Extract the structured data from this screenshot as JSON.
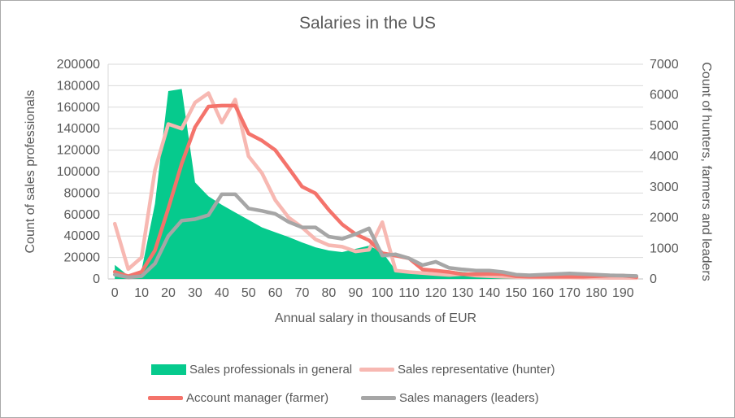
{
  "chart": {
    "title": "Salaries in the US",
    "left_axis_title": "Count of sales professionals",
    "right_axis_title": "Count of hunters, farmers and leaders",
    "x_axis_title": "Annual salary in thousands of EUR",
    "legend": [
      {
        "key": "professionals",
        "label": "Sales professionals in general",
        "swatch": "area"
      },
      {
        "key": "hunter",
        "label": "Sales representative (hunter)",
        "swatch": "line"
      },
      {
        "key": "farmer",
        "label": "Account manager (farmer)",
        "swatch": "line"
      },
      {
        "key": "leaders",
        "label": "Sales managers (leaders)",
        "swatch": "line"
      }
    ],
    "colors": {
      "professionals": "#06ca8d",
      "hunter": "#f7b8b2",
      "farmer": "#f4736b",
      "leaders": "#a6a6a6",
      "text": "#595959",
      "gridline": "#d9d9d9",
      "axis_line": "#bfbfbf"
    }
  },
  "chart_data": {
    "type": "area+line",
    "title": "Salaries in the US",
    "xlabel": "Annual salary in thousands of EUR",
    "ylabel_left": "Count of sales professionals",
    "ylabel_right": "Count of hunters, farmers and leaders",
    "x": [
      0,
      5,
      10,
      15,
      20,
      25,
      30,
      35,
      40,
      45,
      50,
      55,
      60,
      65,
      70,
      75,
      80,
      85,
      90,
      95,
      100,
      105,
      110,
      115,
      120,
      125,
      130,
      135,
      140,
      145,
      150,
      155,
      160,
      165,
      170,
      175,
      180,
      185,
      190,
      195
    ],
    "x_tick_labels": [
      0,
      10,
      20,
      30,
      40,
      50,
      60,
      70,
      80,
      90,
      100,
      110,
      120,
      130,
      140,
      150,
      160,
      170,
      180,
      190
    ],
    "axes": {
      "left_min": 0,
      "left_max": 200000,
      "left_step": 20000,
      "right_min": 0,
      "right_max": 7000,
      "right_step": 1000,
      "gridlines": "horizontal"
    },
    "series": [
      {
        "key": "professionals",
        "name": "Sales professionals in general",
        "axis": "left",
        "style": "area",
        "values": [
          13000,
          3000,
          8000,
          70000,
          175000,
          177000,
          90000,
          77000,
          69000,
          62000,
          55000,
          48000,
          43500,
          39000,
          34000,
          29500,
          26500,
          25000,
          28000,
          31000,
          25000,
          8000,
          7600,
          7000,
          8800,
          7700,
          6500,
          5500,
          4600,
          4000,
          3500,
          3100,
          2800,
          2500,
          2300,
          2100,
          2000,
          1900,
          1800,
          1700
        ]
      },
      {
        "key": "hunter",
        "name": "Sales representative (hunter)",
        "axis": "right",
        "style": "line",
        "values": [
          1800,
          320,
          700,
          3550,
          5050,
          4900,
          5750,
          6060,
          5100,
          5850,
          4000,
          3450,
          2570,
          2000,
          1680,
          1290,
          1100,
          1050,
          900,
          950,
          1850,
          270,
          225,
          190,
          160,
          130,
          160,
          110,
          90,
          70,
          60,
          55,
          50,
          45,
          45,
          40,
          40,
          35,
          35,
          30
        ]
      },
      {
        "key": "farmer",
        "name": "Account manager (farmer)",
        "axis": "right",
        "style": "line",
        "values": [
          230,
          90,
          230,
          930,
          2300,
          3760,
          4950,
          5620,
          5650,
          5650,
          4740,
          4510,
          4200,
          3610,
          3010,
          2790,
          2250,
          1780,
          1460,
          1260,
          840,
          760,
          670,
          310,
          270,
          225,
          155,
          155,
          170,
          160,
          90,
          75,
          75,
          75,
          75,
          75,
          90,
          110,
          110,
          60
        ]
      },
      {
        "key": "leaders",
        "name": "Sales managers (leaders)",
        "axis": "right",
        "style": "line",
        "values": [
          140,
          50,
          90,
          500,
          1400,
          1900,
          1950,
          2080,
          2760,
          2760,
          2300,
          2220,
          2120,
          1860,
          1680,
          1680,
          1380,
          1310,
          1460,
          1650,
          760,
          800,
          670,
          450,
          560,
          360,
          310,
          270,
          270,
          225,
          140,
          120,
          140,
          160,
          180,
          160,
          140,
          120,
          110,
          95
        ]
      }
    ]
  }
}
